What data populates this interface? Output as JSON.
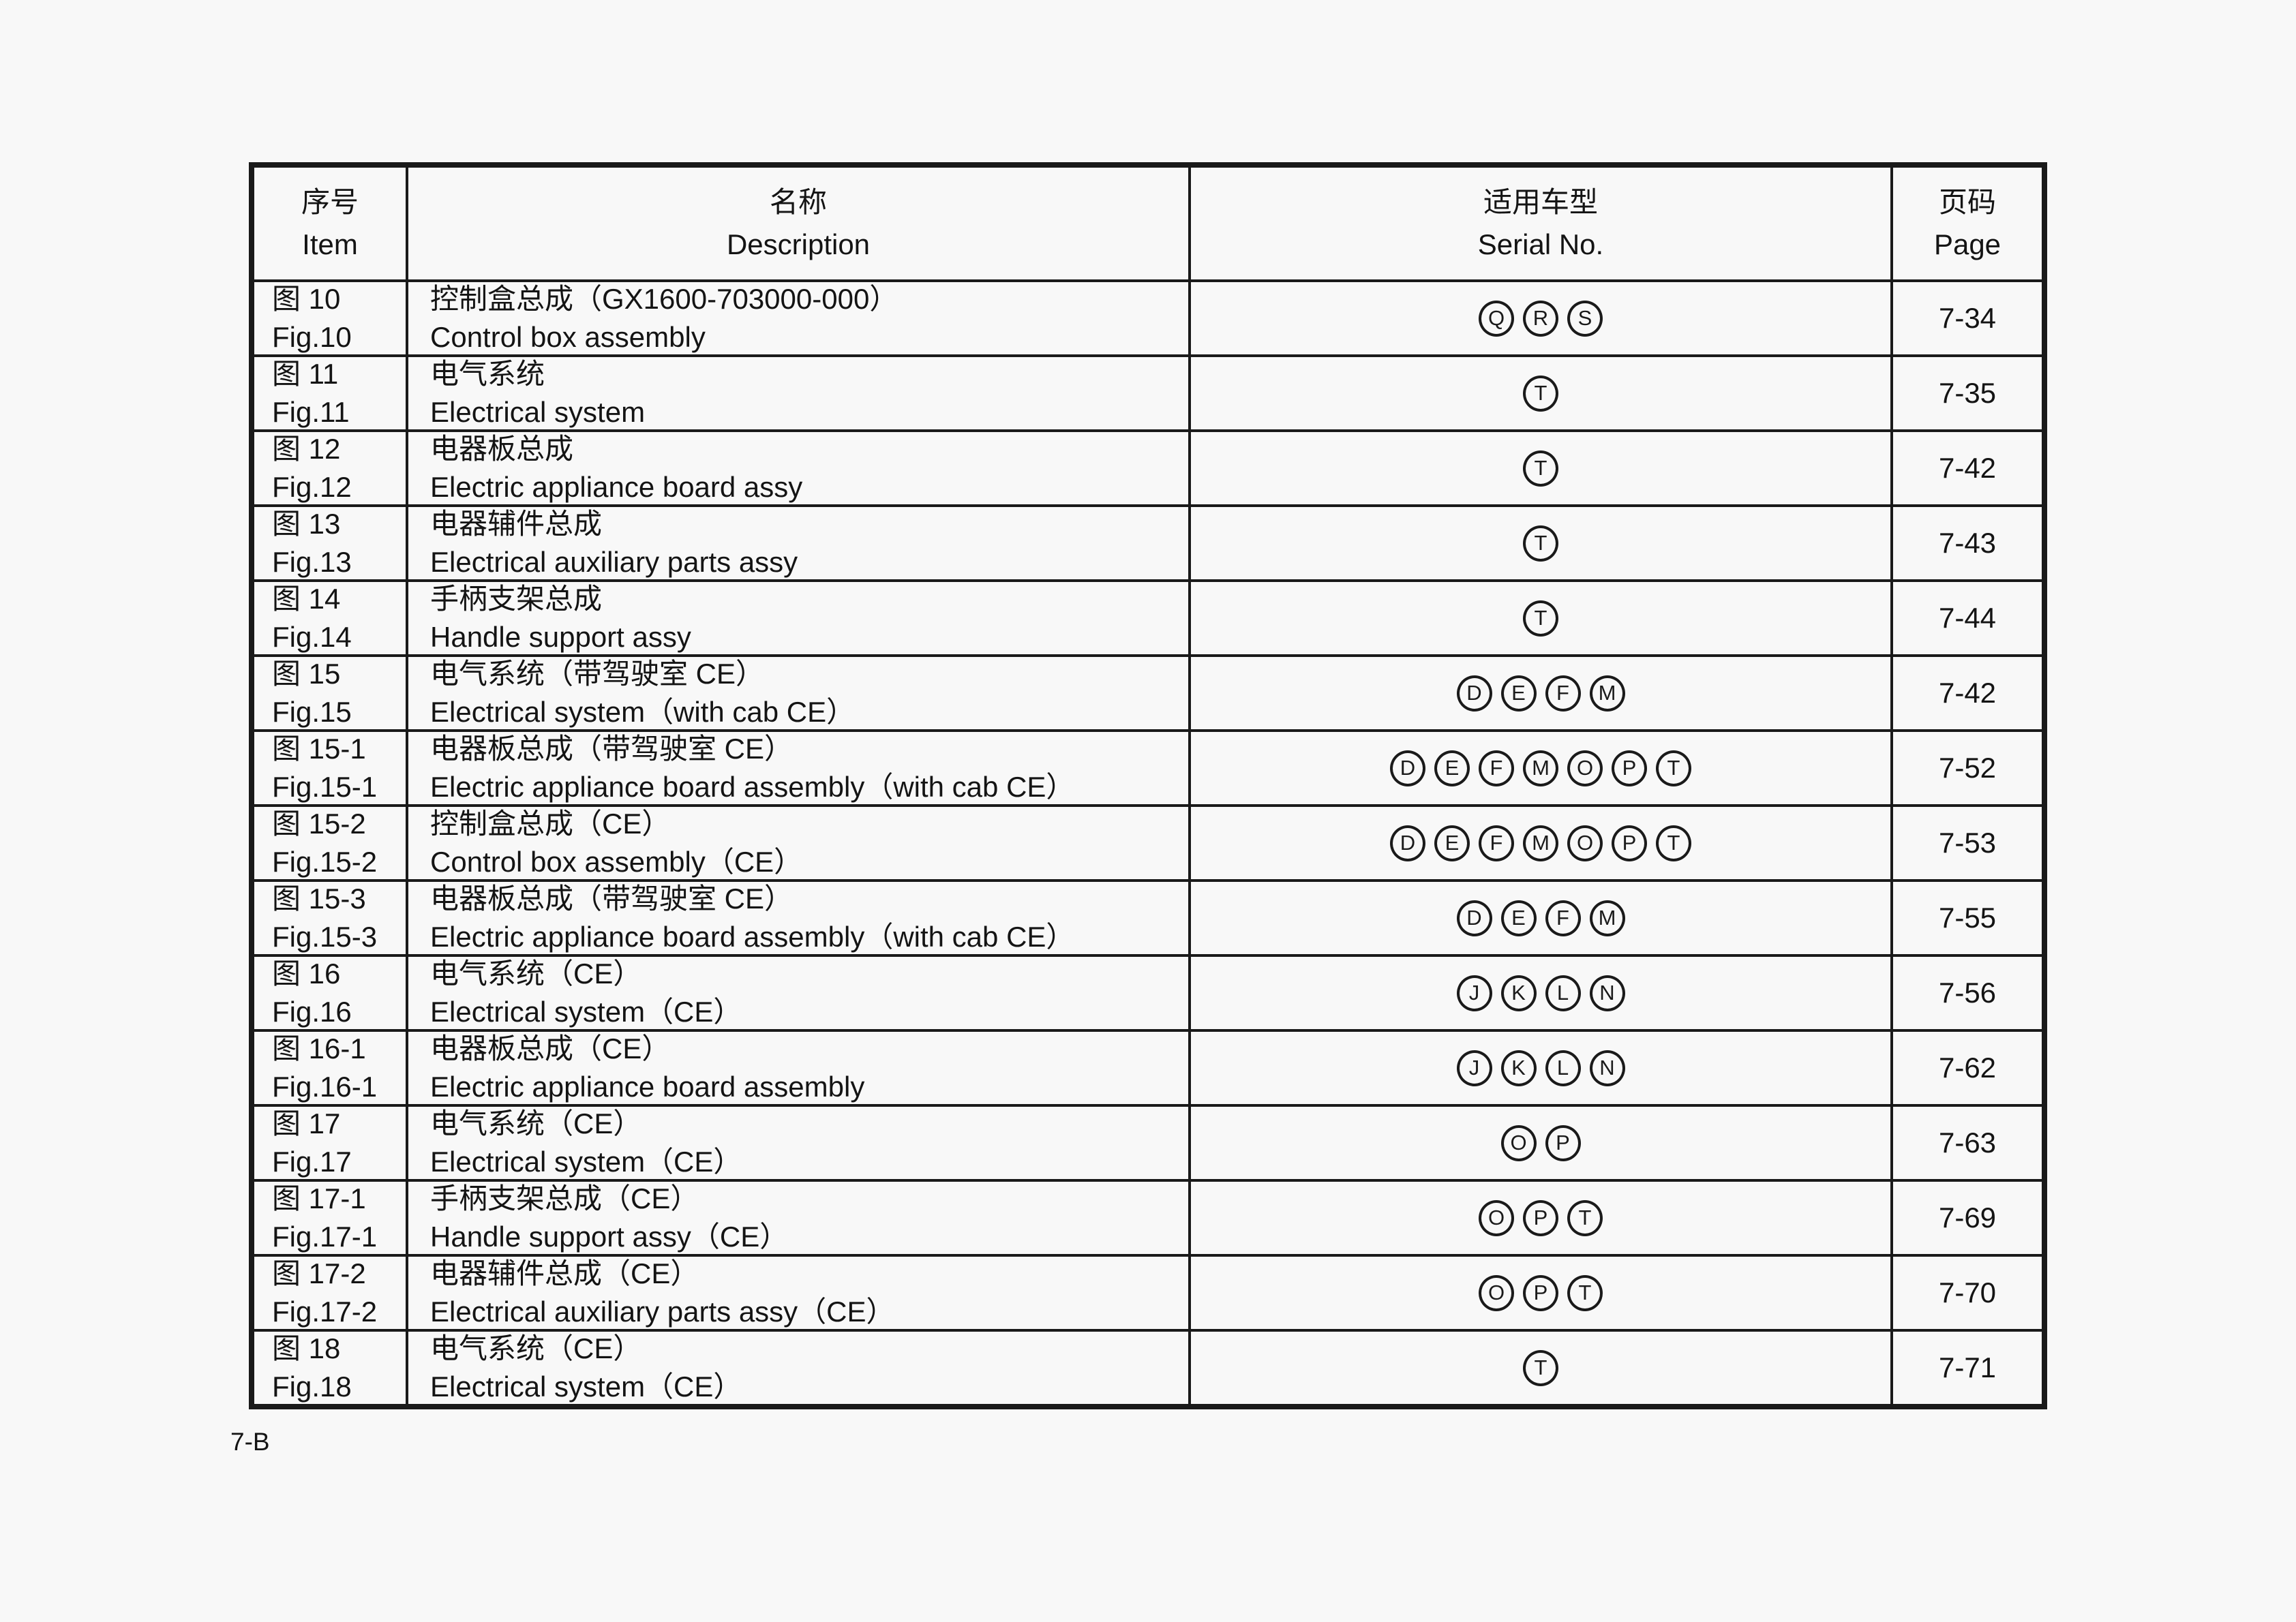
{
  "page": {
    "background": "#f8f8f8",
    "text_color": "#141414",
    "footer_page_label": "7-B"
  },
  "table": {
    "headers": [
      {
        "zh": "序号",
        "en": "Item"
      },
      {
        "zh": "名称",
        "en": "Description"
      },
      {
        "zh": "适用车型",
        "en": "Serial No."
      },
      {
        "zh": "页码",
        "en": "Page"
      }
    ],
    "rows": [
      {
        "item_zh": "图 10",
        "item_en": "Fig.10",
        "desc_zh": "控制盒总成（GX1600-703000-000）",
        "desc_en": "Control box assembly",
        "serials": [
          "Q",
          "R",
          "S"
        ],
        "page": "7-34"
      },
      {
        "item_zh": "图 11",
        "item_en": "Fig.11",
        "desc_zh": "电气系统",
        "desc_en": "Electrical system",
        "serials": [
          "T"
        ],
        "page": "7-35"
      },
      {
        "item_zh": "图 12",
        "item_en": "Fig.12",
        "desc_zh": "电器板总成",
        "desc_en": "Electric appliance board assy",
        "serials": [
          "T"
        ],
        "page": "7-42"
      },
      {
        "item_zh": "图 13",
        "item_en": "Fig.13",
        "desc_zh": "电器辅件总成",
        "desc_en": "Electrical auxiliary parts assy",
        "serials": [
          "T"
        ],
        "page": "7-43"
      },
      {
        "item_zh": "图 14",
        "item_en": "Fig.14",
        "desc_zh": "手柄支架总成",
        "desc_en": "Handle support assy",
        "serials": [
          "T"
        ],
        "page": "7-44"
      },
      {
        "item_zh": "图 15",
        "item_en": "Fig.15",
        "desc_zh": "电气系统（带驾驶室 CE）",
        "desc_en": "Electrical system（with cab CE）",
        "serials": [
          "D",
          "E",
          "F",
          "M"
        ],
        "page": "7-42"
      },
      {
        "item_zh": "图 15-1",
        "item_en": "Fig.15-1",
        "desc_zh": "电器板总成（带驾驶室 CE）",
        "desc_en": "Electric appliance board assembly（with cab CE）",
        "serials": [
          "D",
          "E",
          "F",
          "M",
          "O",
          "P",
          "T"
        ],
        "page": "7-52"
      },
      {
        "item_zh": "图 15-2",
        "item_en": "Fig.15-2",
        "desc_zh": "控制盒总成（CE）",
        "desc_en": "Control box assembly（CE）",
        "serials": [
          "D",
          "E",
          "F",
          "M",
          "O",
          "P",
          "T"
        ],
        "page": "7-53"
      },
      {
        "item_zh": "图 15-3",
        "item_en": "Fig.15-3",
        "desc_zh": "电器板总成（带驾驶室 CE）",
        "desc_en": "Electric appliance board assembly（with cab CE）",
        "serials": [
          "D",
          "E",
          "F",
          "M"
        ],
        "page": "7-55"
      },
      {
        "item_zh": "图 16",
        "item_en": "Fig.16",
        "desc_zh": "电气系统（CE）",
        "desc_en": "Electrical system（CE）",
        "serials": [
          "J",
          "K",
          "L",
          "N"
        ],
        "page": "7-56"
      },
      {
        "item_zh": "图 16-1",
        "item_en": "Fig.16-1",
        "desc_zh": "电器板总成（CE）",
        "desc_en": "Electric appliance board assembly",
        "serials": [
          "J",
          "K",
          "L",
          "N"
        ],
        "page": "7-62"
      },
      {
        "item_zh": "图 17",
        "item_en": "Fig.17",
        "desc_zh": "电气系统（CE）",
        "desc_en": "Electrical system（CE）",
        "serials": [
          "O",
          "P"
        ],
        "page": "7-63"
      },
      {
        "item_zh": "图 17-1",
        "item_en": "Fig.17-1",
        "desc_zh": "手柄支架总成（CE）",
        "desc_en": "Handle support assy（CE）",
        "serials": [
          "O",
          "P",
          "T"
        ],
        "page": "7-69"
      },
      {
        "item_zh": "图 17-2",
        "item_en": "Fig.17-2",
        "desc_zh": "电器辅件总成（CE）",
        "desc_en": "Electrical auxiliary parts assy（CE）",
        "serials": [
          "O",
          "P",
          "T"
        ],
        "page": "7-70"
      },
      {
        "item_zh": "图 18",
        "item_en": "Fig.18",
        "desc_zh": "电气系统（CE）",
        "desc_en": "Electrical system（CE）",
        "serials": [
          "T"
        ],
        "page": "7-71"
      }
    ]
  }
}
